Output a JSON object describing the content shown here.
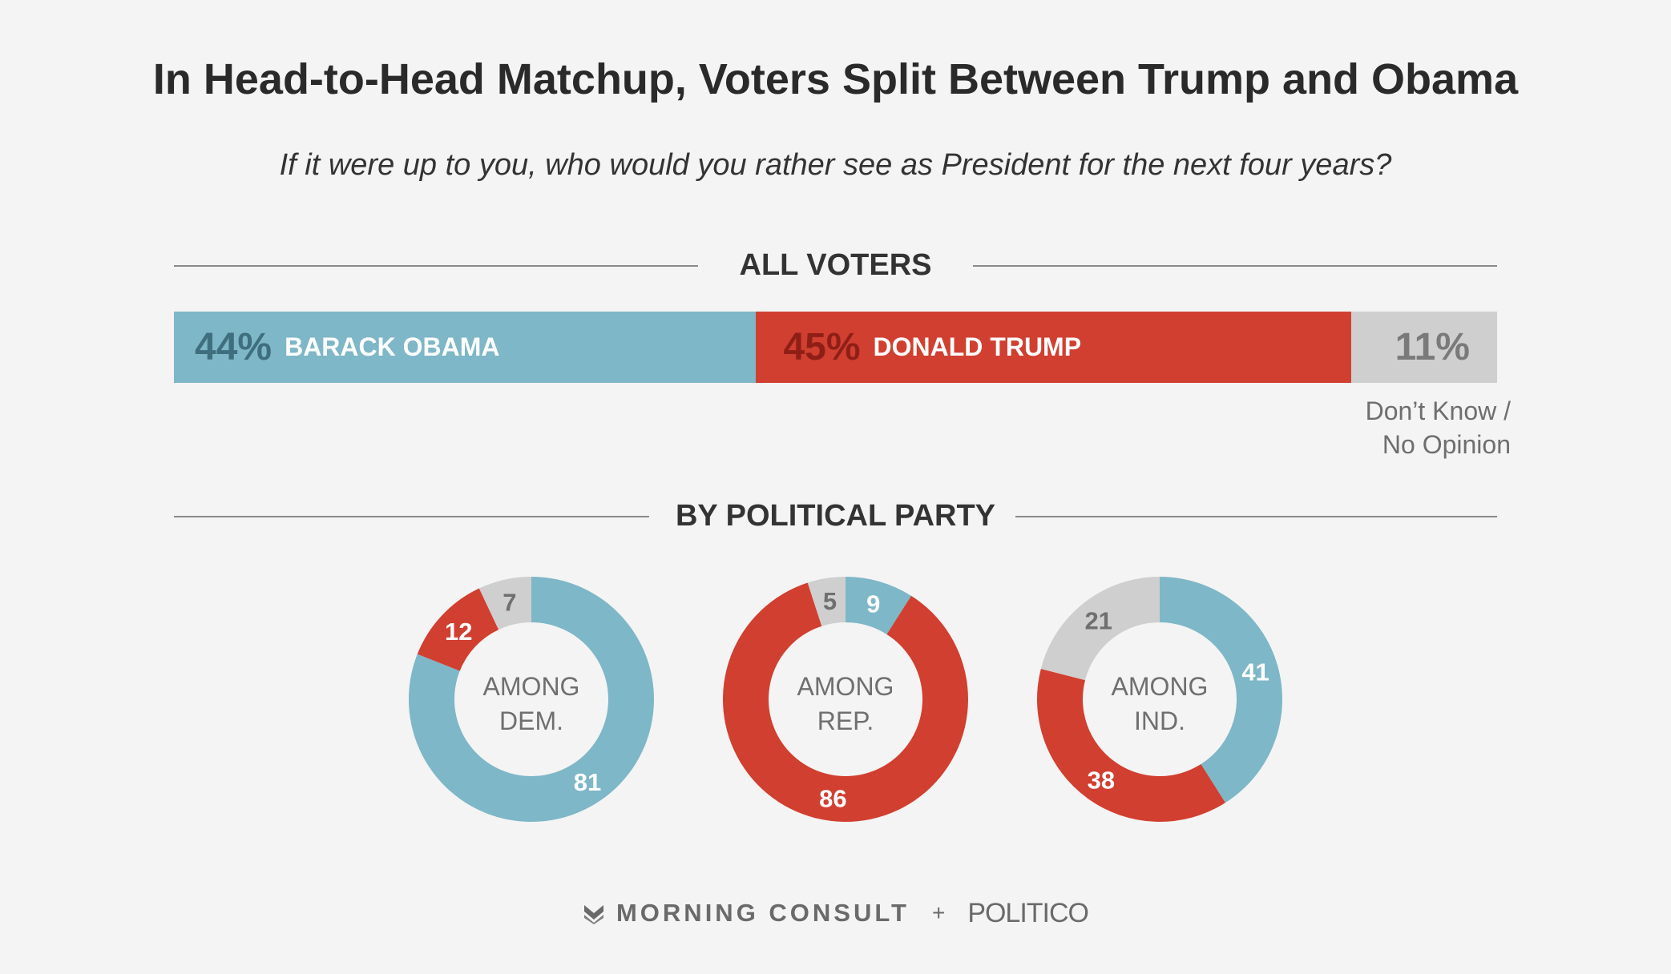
{
  "title": "In Head-to-Head Matchup, Voters Split Between Trump and Obama",
  "subtitle": "If it were up to you, who would you rather see as President for the next four years?",
  "colors": {
    "obama": "#7eb7c7",
    "trump": "#d13f30",
    "dont_know": "#cfcfcf",
    "background": "#f4f4f4"
  },
  "all_voters": {
    "heading": "ALL VOTERS",
    "obama_pct": "44%",
    "obama_label": "BARACK OBAMA",
    "trump_pct": "45%",
    "trump_label": "DONALD TRUMP",
    "dk_pct": "11%",
    "dk_note_line1": "Don’t Know /",
    "dk_note_line2": "No Opinion"
  },
  "by_party_heading": "BY POLITICAL PARTY",
  "chart_data": [
    {
      "type": "bar",
      "title": "ALL VOTERS",
      "orientation": "horizontal-stacked",
      "categories": [
        "BARACK OBAMA",
        "DONALD TRUMP",
        "Don’t Know / No Opinion"
      ],
      "values": [
        44,
        45,
        11
      ],
      "unit": "%"
    },
    {
      "type": "pie",
      "title": "BY POLITICAL PARTY",
      "donuts": [
        {
          "center_label": [
            "AMONG",
            "DEM."
          ],
          "slices": [
            {
              "name": "BARACK OBAMA",
              "value": 81
            },
            {
              "name": "DONALD TRUMP",
              "value": 12
            },
            {
              "name": "Don’t Know / No Opinion",
              "value": 7
            }
          ]
        },
        {
          "center_label": [
            "AMONG",
            "REP."
          ],
          "slices": [
            {
              "name": "BARACK OBAMA",
              "value": 9
            },
            {
              "name": "DONALD TRUMP",
              "value": 86
            },
            {
              "name": "Don’t Know / No Opinion",
              "value": 5
            }
          ]
        },
        {
          "center_label": [
            "AMONG",
            "IND."
          ],
          "slices": [
            {
              "name": "BARACK OBAMA",
              "value": 41
            },
            {
              "name": "DONALD TRUMP",
              "value": 38
            },
            {
              "name": "Don’t Know / No Opinion",
              "value": 21
            }
          ]
        }
      ]
    }
  ],
  "footer": {
    "logo_icon": "morning-consult-logo-icon",
    "brand1": "MORNING CONSULT",
    "plus": "+",
    "brand2": "POLITICO"
  }
}
